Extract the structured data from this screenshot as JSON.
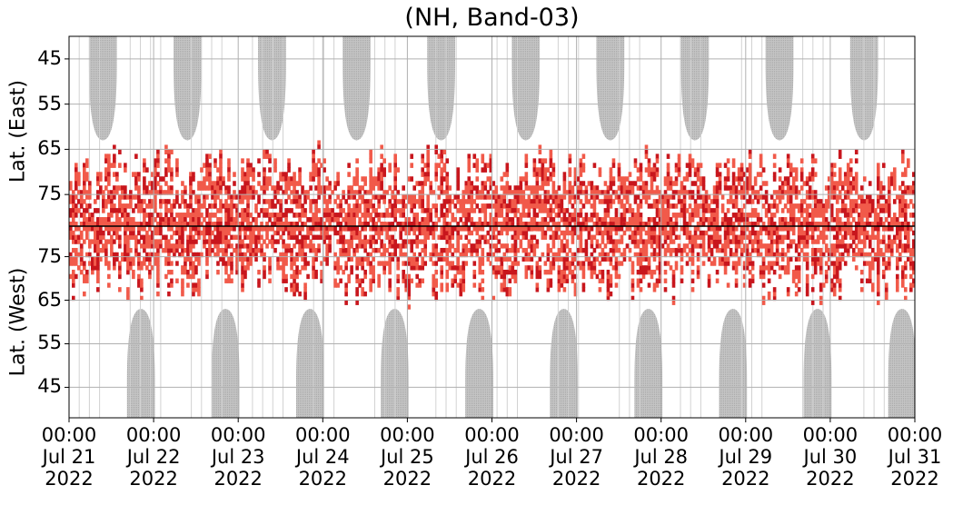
{
  "chart_data": {
    "type": "heatmap",
    "title": "(NH, Band-03)",
    "panels": [
      {
        "name": "east",
        "ylabel": "Lat. (East)",
        "yticks": [
          "45",
          "55",
          "65",
          "75"
        ],
        "ylim": [
          40,
          82
        ]
      },
      {
        "name": "west",
        "ylabel": "Lat. (West)",
        "yticks": [
          "75",
          "65",
          "55",
          "45"
        ],
        "ylim": [
          82,
          38
        ]
      }
    ],
    "xticks": [
      {
        "time": "00:00",
        "date": "Jul 21",
        "year": "2022"
      },
      {
        "time": "00:00",
        "date": "Jul 22",
        "year": "2022"
      },
      {
        "time": "00:00",
        "date": "Jul 23",
        "year": "2022"
      },
      {
        "time": "00:00",
        "date": "Jul 24",
        "year": "2022"
      },
      {
        "time": "00:00",
        "date": "Jul 25",
        "year": "2022"
      },
      {
        "time": "00:00",
        "date": "Jul 26",
        "year": "2022"
      },
      {
        "time": "00:00",
        "date": "Jul 27",
        "year": "2022"
      },
      {
        "time": "00:00",
        "date": "Jul 28",
        "year": "2022"
      },
      {
        "time": "00:00",
        "date": "Jul 29",
        "year": "2022"
      },
      {
        "time": "00:00",
        "date": "Jul 30",
        "year": "2022"
      },
      {
        "time": "00:00",
        "date": "Jul 31",
        "year": "2022"
      }
    ],
    "xlim": [
      "2022-07-21 00:00",
      "2022-07-31 00:00"
    ],
    "grid": true,
    "colors": {
      "no_data": "#bdbdbd",
      "low": "#f15a4a",
      "high": "#c8161d"
    },
    "no_data_east_days": [
      0.4,
      1.4,
      2.4,
      3.4,
      4.4,
      5.4,
      6.4,
      7.4,
      8.4,
      9.4
    ],
    "no_data_west_days": [
      0.85,
      1.85,
      2.85,
      3.85,
      4.85,
      5.85,
      6.85,
      7.85,
      8.85,
      9.85
    ],
    "no_data_edge_lat": 63,
    "activity_edge_lat": 60
  }
}
